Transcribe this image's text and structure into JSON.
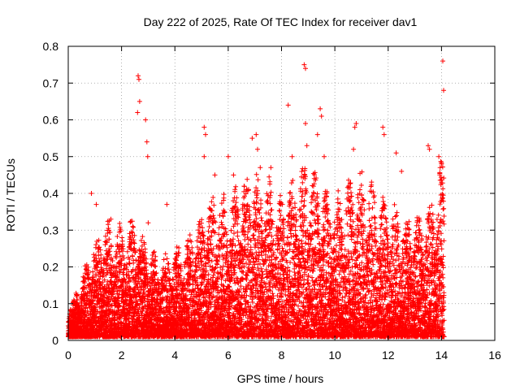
{
  "chart_data": {
    "type": "scatter",
    "title": "Day 222 of 2025, Rate Of TEC Index for receiver dav1",
    "xlabel": "GPS time / hours",
    "ylabel": "ROTI / TECUs",
    "xlim": [
      0,
      16
    ],
    "ylim": [
      0,
      0.8
    ],
    "x_ticks": [
      0,
      2,
      4,
      6,
      8,
      10,
      12,
      14,
      16
    ],
    "y_ticks": [
      0,
      0.1,
      0.2,
      0.3,
      0.4,
      0.5,
      0.6,
      0.7,
      0.8
    ],
    "x_tick_labels": [
      "0",
      "2",
      "4",
      "6",
      "8",
      "10",
      "12",
      "14",
      "16"
    ],
    "y_tick_labels": [
      "0",
      "0.1",
      "0.2",
      "0.3",
      "0.4",
      "0.5",
      "0.6",
      "0.7",
      "0.8"
    ],
    "grid": true,
    "marker": "+",
    "series": [
      {
        "name": "dav1",
        "color": "#ff0000",
        "envelope_hours": [
          0,
          0.5,
          1,
          1.5,
          2,
          2.5,
          3,
          3.5,
          4,
          4.5,
          5,
          5.5,
          6,
          6.5,
          7,
          7.5,
          8,
          8.5,
          9,
          9.5,
          10,
          10.5,
          11,
          11.5,
          12,
          12.5,
          13,
          13.5,
          14,
          14.1
        ],
        "typical_max": [
          0.07,
          0.15,
          0.25,
          0.3,
          0.28,
          0.3,
          0.22,
          0.2,
          0.22,
          0.25,
          0.32,
          0.38,
          0.35,
          0.4,
          0.42,
          0.4,
          0.35,
          0.42,
          0.45,
          0.38,
          0.35,
          0.4,
          0.42,
          0.38,
          0.35,
          0.32,
          0.3,
          0.32,
          0.45,
          0.45
        ],
        "peaks": [
          {
            "x": 0.87,
            "y": 0.4
          },
          {
            "x": 1.05,
            "y": 0.37
          },
          {
            "x": 1.6,
            "y": 0.33
          },
          {
            "x": 2.62,
            "y": 0.72
          },
          {
            "x": 2.65,
            "y": 0.71
          },
          {
            "x": 2.6,
            "y": 0.62
          },
          {
            "x": 2.68,
            "y": 0.65
          },
          {
            "x": 2.9,
            "y": 0.6
          },
          {
            "x": 2.95,
            "y": 0.54
          },
          {
            "x": 2.98,
            "y": 0.5
          },
          {
            "x": 3.0,
            "y": 0.32
          },
          {
            "x": 3.7,
            "y": 0.37
          },
          {
            "x": 5.1,
            "y": 0.58
          },
          {
            "x": 5.15,
            "y": 0.56
          },
          {
            "x": 5.1,
            "y": 0.5
          },
          {
            "x": 5.5,
            "y": 0.45
          },
          {
            "x": 6.0,
            "y": 0.5
          },
          {
            "x": 6.2,
            "y": 0.45
          },
          {
            "x": 6.9,
            "y": 0.55
          },
          {
            "x": 7.05,
            "y": 0.56
          },
          {
            "x": 7.1,
            "y": 0.52
          },
          {
            "x": 7.2,
            "y": 0.47
          },
          {
            "x": 7.6,
            "y": 0.47
          },
          {
            "x": 8.25,
            "y": 0.64
          },
          {
            "x": 8.4,
            "y": 0.5
          },
          {
            "x": 8.85,
            "y": 0.75
          },
          {
            "x": 8.9,
            "y": 0.74
          },
          {
            "x": 8.9,
            "y": 0.59
          },
          {
            "x": 8.95,
            "y": 0.53
          },
          {
            "x": 9.45,
            "y": 0.63
          },
          {
            "x": 9.5,
            "y": 0.61
          },
          {
            "x": 9.35,
            "y": 0.56
          },
          {
            "x": 9.6,
            "y": 0.5
          },
          {
            "x": 10.8,
            "y": 0.59
          },
          {
            "x": 10.75,
            "y": 0.58
          },
          {
            "x": 10.7,
            "y": 0.52
          },
          {
            "x": 11.8,
            "y": 0.58
          },
          {
            "x": 11.85,
            "y": 0.56
          },
          {
            "x": 12.3,
            "y": 0.51
          },
          {
            "x": 12.5,
            "y": 0.46
          },
          {
            "x": 13.5,
            "y": 0.53
          },
          {
            "x": 13.55,
            "y": 0.52
          },
          {
            "x": 14.05,
            "y": 0.76
          },
          {
            "x": 14.08,
            "y": 0.68
          },
          {
            "x": 13.9,
            "y": 0.5
          },
          {
            "x": 14.0,
            "y": 0.48
          },
          {
            "x": 13.95,
            "y": 0.47
          }
        ]
      }
    ]
  }
}
